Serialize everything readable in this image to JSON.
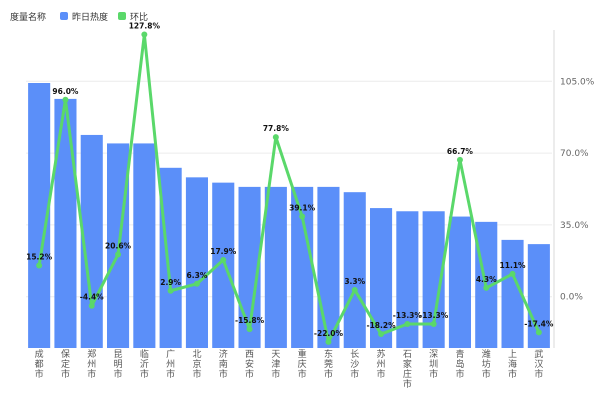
{
  "legend": {
    "title": "度量名称",
    "bar_label": "昨日热度",
    "line_label": "环比",
    "bar_color": "#5B8FF9",
    "line_color": "#5AD86A"
  },
  "chart_data": {
    "type": "bar+line",
    "categories": [
      "成都市",
      "保定市",
      "郑州市",
      "昆明市",
      "临沂市",
      "广州市",
      "北京市",
      "济南市",
      "西安市",
      "天津市",
      "重庆市",
      "东莞市",
      "长沙市",
      "苏州市",
      "石家庄市",
      "深圳市",
      "青岛市",
      "潍坊市",
      "上海市",
      "武汉市"
    ],
    "series": [
      {
        "name": "昨日热度",
        "type": "bar",
        "axis": "left",
        "values": [
          250,
          235,
          201,
          193,
          193,
          170,
          161,
          156,
          152,
          152,
          152,
          152,
          147,
          132,
          129,
          129,
          124,
          119,
          102,
          98
        ]
      },
      {
        "name": "环比",
        "type": "line",
        "axis": "right",
        "values": [
          15.2,
          96.0,
          -4.4,
          20.6,
          127.8,
          2.9,
          6.3,
          17.9,
          -15.8,
          77.8,
          39.1,
          -22.0,
          3.3,
          -18.2,
          -13.3,
          -13.3,
          66.7,
          4.3,
          11.1,
          -17.4
        ],
        "labels": [
          "15.2%",
          "96.0%",
          "-4.4%",
          "20.6%",
          "127.8%",
          "2.9%",
          "6.3%",
          "17.9%",
          "-15.8%",
          "77.8%",
          "39.1%",
          "-22.0%",
          "3.3%",
          "-18.2%",
          "-13.3%",
          "-13.3%",
          "66.7%",
          "4.3%",
          "11.1%",
          "-17.4%"
        ]
      }
    ],
    "left_axis": {
      "min": 0,
      "max": 300,
      "visible_labels": false
    },
    "right_axis": {
      "min": -25,
      "max": 130,
      "ticks": [
        0,
        35,
        70,
        105
      ],
      "tick_labels": [
        "0.0%",
        "35.0%",
        "70.0%",
        "105.0%"
      ]
    },
    "grid": true,
    "legend_position": "top-left"
  }
}
